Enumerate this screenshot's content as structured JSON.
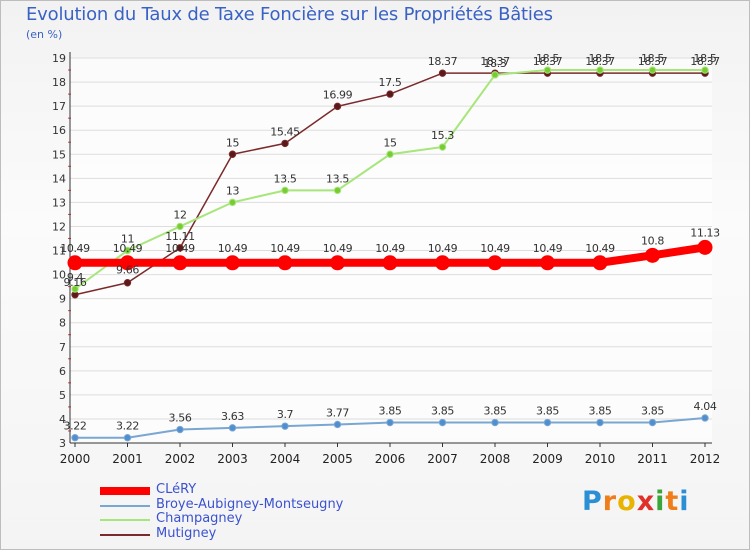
{
  "title": "Evolution du Taux de Taxe Foncière sur les Propriétés Bâties",
  "subtitle": "(en %)",
  "logo": {
    "letters": [
      "P",
      "r",
      "o",
      "x",
      "i",
      "t",
      "i"
    ],
    "colors": [
      "#2b8fd6",
      "#ef7d1a",
      "#e8b400",
      "#e0302a",
      "#3aa63a",
      "#ef7d1a",
      "#2b8fd6"
    ]
  },
  "chart_data": {
    "type": "line",
    "title": "Evolution du Taux de Taxe Foncière sur les Propriétés Bâties",
    "ylabel": "(en %)",
    "xlabel": "",
    "ylim": [
      3,
      19
    ],
    "categories": [
      "2000",
      "2001",
      "2002",
      "2003",
      "2004",
      "2005",
      "2006",
      "2007",
      "2008",
      "2009",
      "2010",
      "2011",
      "2012"
    ],
    "yticks": [
      "3",
      "4",
      "5",
      "6",
      "7",
      "8",
      "9",
      "10",
      "11",
      "12",
      "13",
      "14",
      "15",
      "16",
      "17",
      "18",
      "19"
    ],
    "series": [
      {
        "name": "CLéRY",
        "color": "#ff0000",
        "width": 8,
        "values": [
          10.49,
          10.49,
          10.49,
          10.49,
          10.49,
          10.49,
          10.49,
          10.49,
          10.49,
          10.49,
          10.49,
          10.8,
          11.13
        ],
        "labels": [
          "10.49",
          "10.49",
          "10.49",
          "10.49",
          "10.49",
          "10.49",
          "10.49",
          "10.49",
          "10.49",
          "10.49",
          "10.49",
          "10.8",
          "11.13"
        ]
      },
      {
        "name": "Broye-Aubigney-Montseugny",
        "color": "#7aa6d2",
        "width": 2,
        "values": [
          3.22,
          3.22,
          3.56,
          3.63,
          3.7,
          3.77,
          3.85,
          3.85,
          3.85,
          3.85,
          3.85,
          3.85,
          4.04
        ],
        "labels": [
          "3.22",
          "3.22",
          "3.56",
          "3.63",
          "3.7",
          "3.77",
          "3.85",
          "3.85",
          "3.85",
          "3.85",
          "3.85",
          "3.85",
          "4.04"
        ]
      },
      {
        "name": "Champagney",
        "color": "#a6e67a",
        "width": 2,
        "values": [
          9.4,
          11,
          12,
          13,
          13.5,
          13.5,
          15,
          15.3,
          18.3,
          18.5,
          18.5,
          18.5,
          18.5
        ],
        "labels": [
          "9.4",
          "11",
          "12",
          "13",
          "13.5",
          "13.5",
          "15",
          "15.3",
          "18.3",
          "18.5",
          "18.5",
          "18.5",
          "18.5"
        ]
      },
      {
        "name": "Mutigney",
        "color": "#7a2a2a",
        "width": 1.5,
        "values": [
          9.16,
          9.66,
          11.11,
          15,
          15.45,
          16.99,
          17.5,
          18.37,
          18.37,
          18.37,
          18.37,
          18.37,
          18.37
        ],
        "labels": [
          "9.16",
          "9.66",
          "11.11",
          "15",
          "15.45",
          "16.99",
          "17.5",
          "18.37",
          "18.37",
          "18.37",
          "18.37",
          "18.37",
          "18.37"
        ]
      }
    ],
    "legend_position": "bottom-left"
  }
}
